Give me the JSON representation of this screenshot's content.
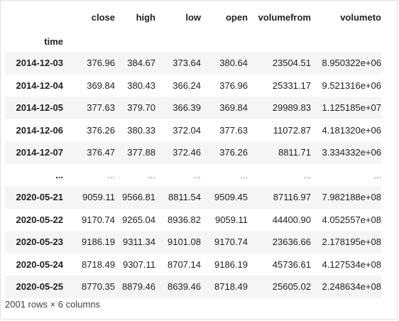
{
  "table": {
    "columns": [
      "close",
      "high",
      "low",
      "open",
      "volumefrom",
      "volumeto"
    ],
    "index_name": "time",
    "rows": [
      {
        "index": "2014-12-03",
        "values": [
          "376.96",
          "384.67",
          "373.64",
          "380.64",
          "23504.51",
          "8.950322e+06"
        ]
      },
      {
        "index": "2014-12-04",
        "values": [
          "369.84",
          "380.43",
          "366.24",
          "376.96",
          "25331.17",
          "9.521316e+06"
        ]
      },
      {
        "index": "2014-12-05",
        "values": [
          "377.63",
          "379.70",
          "366.39",
          "369.84",
          "29989.83",
          "1.125185e+07"
        ]
      },
      {
        "index": "2014-12-06",
        "values": [
          "376.26",
          "380.33",
          "372.04",
          "377.63",
          "11072.87",
          "4.181320e+06"
        ]
      },
      {
        "index": "2014-12-07",
        "values": [
          "376.47",
          "377.88",
          "372.46",
          "376.26",
          "8811.71",
          "3.334332e+06"
        ]
      },
      {
        "index": "...",
        "values": [
          "...",
          "...",
          "...",
          "...",
          "...",
          "..."
        ]
      },
      {
        "index": "2020-05-21",
        "values": [
          "9059.11",
          "9566.81",
          "8811.54",
          "9509.45",
          "87116.97",
          "7.982188e+08"
        ]
      },
      {
        "index": "2020-05-22",
        "values": [
          "9170.74",
          "9265.04",
          "8936.82",
          "9059.11",
          "44400.90",
          "4.052557e+08"
        ]
      },
      {
        "index": "2020-05-23",
        "values": [
          "9186.19",
          "9311.34",
          "9101.08",
          "9170.74",
          "23636.66",
          "2.178195e+08"
        ]
      },
      {
        "index": "2020-05-24",
        "values": [
          "8718.49",
          "9307.11",
          "8707.14",
          "9186.19",
          "45736.61",
          "4.127534e+08"
        ]
      },
      {
        "index": "2020-05-25",
        "values": [
          "8770.35",
          "8879.46",
          "8639.46",
          "8718.49",
          "25605.02",
          "2.248634e+08"
        ]
      }
    ]
  },
  "caption": "2001 rows × 6 columns"
}
